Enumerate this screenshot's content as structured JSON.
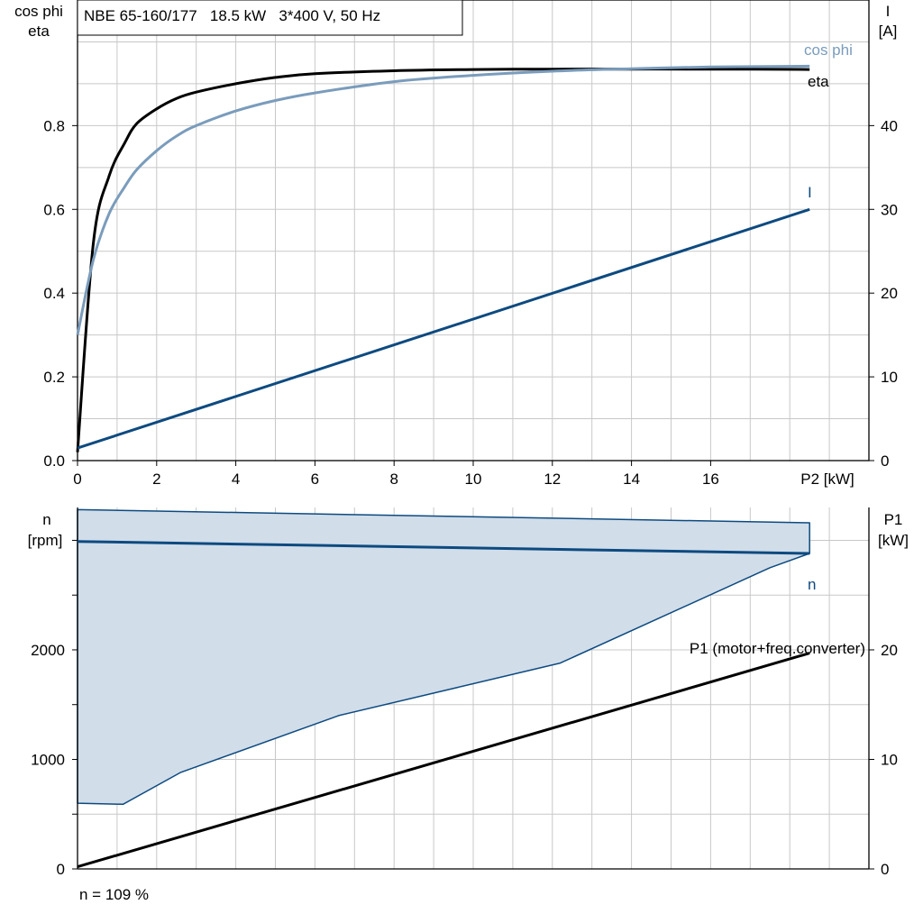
{
  "header": "NBE 65-160/177   18.5 kW   3*400 V, 50 Hz",
  "footer": "n = 109 %",
  "colors": {
    "eta": "#000000",
    "cos_phi": "#7a9cbc",
    "current": "#0d4a80",
    "n": "#0d4a80",
    "area_fill": "#d1dde9",
    "p1": "#000000",
    "grid": "#c8c8c8"
  },
  "chart_data": [
    {
      "type": "line",
      "title": "NBE 65-160/177   18.5 kW   3*400 V, 50 Hz",
      "xlabel": "P2 [kW]",
      "ylabel_left": [
        "cos phi",
        "eta"
      ],
      "ylabel_right": [
        "I",
        "[A]"
      ],
      "xlim": [
        0,
        20
      ],
      "ylim_left": [
        0,
        1.1
      ],
      "ylim_right": [
        0,
        55
      ],
      "x_ticks": [
        "0",
        "2",
        "4",
        "6",
        "8",
        "10",
        "12",
        "14",
        "16"
      ],
      "y_left_ticks": [
        "0.0",
        "0.2",
        "0.4",
        "0.6",
        "0.8"
      ],
      "y_right_ticks": [
        "0",
        "10",
        "20",
        "30",
        "40"
      ],
      "grid": true,
      "series": [
        {
          "name": "eta",
          "axis": "left",
          "color": "#000000",
          "x": [
            0,
            0.4,
            0.8,
            1.2,
            1.5,
            2,
            2.5,
            3,
            4,
            5,
            6,
            8,
            10,
            12,
            14,
            16,
            18.5
          ],
          "y": [
            0.02,
            0.52,
            0.68,
            0.76,
            0.805,
            0.84,
            0.865,
            0.88,
            0.9,
            0.915,
            0.924,
            0.931,
            0.934,
            0.935,
            0.935,
            0.935,
            0.934
          ]
        },
        {
          "name": "cos phi",
          "axis": "left",
          "color": "#7a9cbc",
          "x": [
            0,
            0.4,
            0.8,
            1.2,
            1.5,
            2,
            2.5,
            3,
            4,
            5,
            6,
            8,
            10,
            12,
            14,
            16,
            18.5
          ],
          "y": [
            0.3,
            0.48,
            0.59,
            0.655,
            0.695,
            0.74,
            0.775,
            0.8,
            0.835,
            0.86,
            0.878,
            0.905,
            0.92,
            0.93,
            0.936,
            0.94,
            0.942
          ]
        },
        {
          "name": "I",
          "axis": "right",
          "color": "#0d4a80",
          "x": [
            0,
            18.5
          ],
          "y": [
            1.5,
            30
          ]
        }
      ]
    },
    {
      "type": "area",
      "xlim": [
        0,
        20
      ],
      "ylabel_left": [
        "n",
        "[rpm]"
      ],
      "ylabel_right": [
        "P1",
        "[kW]"
      ],
      "ylim_left": [
        0,
        3300
      ],
      "ylim_right": [
        0,
        33
      ],
      "y_left_ticks": [
        "0",
        "1000",
        "2000"
      ],
      "y_right_ticks": [
        "0",
        "10",
        "20"
      ],
      "grid": true,
      "series": [
        {
          "name": "range",
          "axis": "left",
          "color": "#0d4a80",
          "fill": "#d1dde9",
          "x": [
            0,
            18.5,
            18.5,
            18.5,
            17.5,
            12.2,
            6.6,
            2.6,
            1.15,
            0,
            0
          ],
          "y": [
            3280,
            3160,
            2880,
            2880,
            2750,
            1880,
            1400,
            880,
            590,
            600,
            3280
          ]
        },
        {
          "name": "n",
          "axis": "left",
          "color": "#0d4a80",
          "x": [
            0,
            18.5
          ],
          "y": [
            2990,
            2880
          ]
        },
        {
          "name": "P1 (motor+freq.converter)",
          "axis": "right",
          "color": "#000000",
          "x": [
            0,
            18.5
          ],
          "y": [
            0.2,
            19.7
          ]
        }
      ]
    }
  ]
}
